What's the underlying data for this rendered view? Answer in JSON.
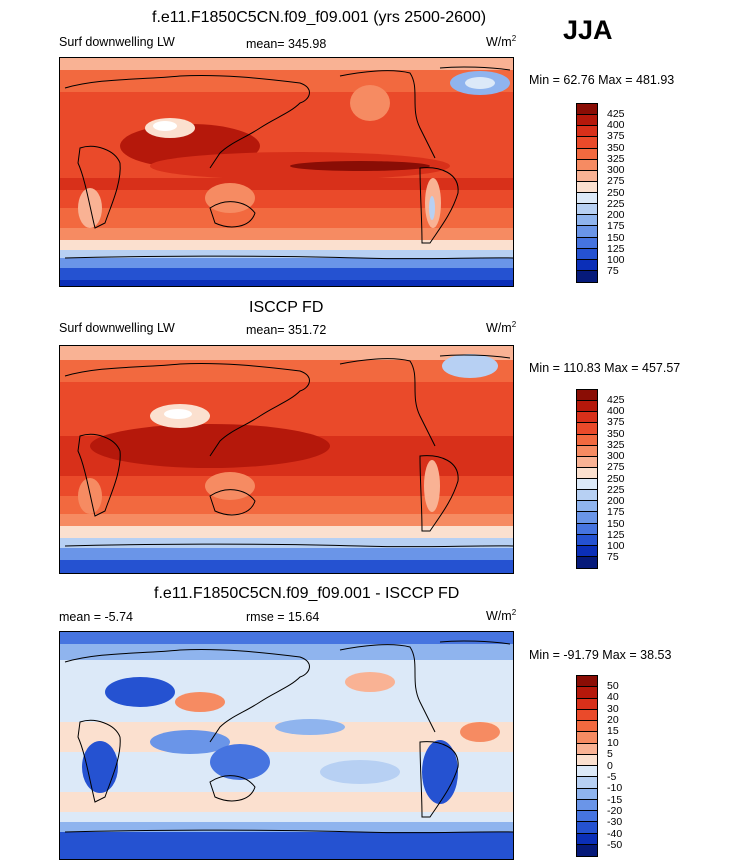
{
  "season": "JJA",
  "units_text": "W/m",
  "units_sup": "2",
  "panels": [
    {
      "title": "f.e11.F1850C5CN.f09_f09.001 (yrs 2500-2600)",
      "left_label": "Surf downwelling LW",
      "center_label": "mean= 345.98",
      "minmax": "Min =  62.76 Max = 481.93",
      "scale": "abs"
    },
    {
      "title": "ISCCP FD",
      "left_label": "Surf downwelling LW",
      "center_label": "mean= 351.72",
      "minmax": "Min = 110.83 Max = 457.57",
      "scale": "abs"
    },
    {
      "title": "f.e11.F1850C5CN.f09_f09.001 - ISCCP FD",
      "left_label": "mean =  -5.74",
      "center_label": "rmse =  15.64",
      "minmax": "Min = -91.79 Max =  38.53",
      "scale": "diff"
    }
  ],
  "colorbars": {
    "abs": {
      "labels": [
        "425",
        "400",
        "375",
        "350",
        "325",
        "300",
        "275",
        "250",
        "225",
        "200",
        "175",
        "150",
        "125",
        "100",
        "75"
      ],
      "colors": [
        "#8a0d05",
        "#b5180b",
        "#d8301a",
        "#ea4a2a",
        "#f2693f",
        "#f68b62",
        "#f9b294",
        "#fbe0cf",
        "#dce9f8",
        "#b7d0f3",
        "#8fb4ee",
        "#6a95e8",
        "#4674e0",
        "#2552d1",
        "#0b2fb8",
        "#061a7a"
      ]
    },
    "diff": {
      "labels": [
        "50",
        "40",
        "30",
        "20",
        "15",
        "10",
        "5",
        "0",
        "-5",
        "-10",
        "-15",
        "-20",
        "-30",
        "-40",
        "-50"
      ],
      "colors": [
        "#8a0d05",
        "#b5180b",
        "#d8301a",
        "#ea4a2a",
        "#f2693f",
        "#f68b62",
        "#f9b294",
        "#fbe0cf",
        "#dce9f8",
        "#b7d0f3",
        "#8fb4ee",
        "#6a95e8",
        "#4674e0",
        "#2552d1",
        "#0b2fb8",
        "#061a7a"
      ]
    }
  }
}
